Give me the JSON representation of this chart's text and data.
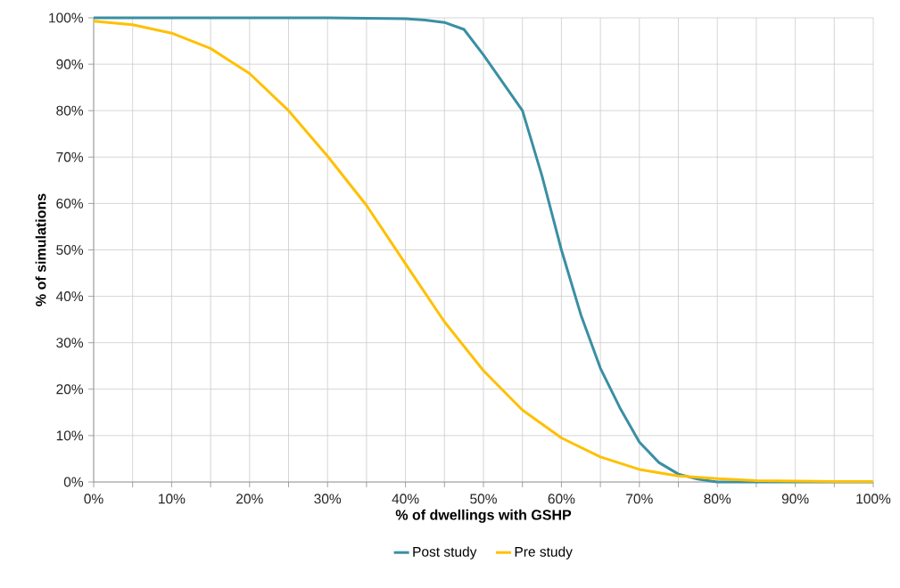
{
  "chart_data": {
    "type": "line",
    "xlabel": "% of dwellings with GSHP",
    "ylabel": "% of simulations",
    "xlim": [
      0,
      100
    ],
    "ylim": [
      0,
      100
    ],
    "xticks": [
      {
        "value": 0,
        "label": "0%"
      },
      {
        "value": 5,
        "label": null
      },
      {
        "value": 10,
        "label": "10%"
      },
      {
        "value": 15,
        "label": null
      },
      {
        "value": 20,
        "label": "20%"
      },
      {
        "value": 25,
        "label": null
      },
      {
        "value": 30,
        "label": "30%"
      },
      {
        "value": 35,
        "label": null
      },
      {
        "value": 40,
        "label": "40%"
      },
      {
        "value": 45,
        "label": null
      },
      {
        "value": 50,
        "label": "50%"
      },
      {
        "value": 55,
        "label": null
      },
      {
        "value": 60,
        "label": "60%"
      },
      {
        "value": 65,
        "label": null
      },
      {
        "value": 70,
        "label": "70%"
      },
      {
        "value": 75,
        "label": null
      },
      {
        "value": 80,
        "label": "80%"
      },
      {
        "value": 85,
        "label": null
      },
      {
        "value": 90,
        "label": "90%"
      },
      {
        "value": 95,
        "label": null
      },
      {
        "value": 100,
        "label": "100%"
      }
    ],
    "yticks": [
      {
        "value": 0,
        "label": "0%"
      },
      {
        "value": 10,
        "label": "10%"
      },
      {
        "value": 20,
        "label": "20%"
      },
      {
        "value": 30,
        "label": "30%"
      },
      {
        "value": 40,
        "label": "40%"
      },
      {
        "value": 50,
        "label": "50%"
      },
      {
        "value": 60,
        "label": "60%"
      },
      {
        "value": 70,
        "label": "70%"
      },
      {
        "value": 80,
        "label": "80%"
      },
      {
        "value": 90,
        "label": "90%"
      },
      {
        "value": 100,
        "label": "100%"
      }
    ],
    "grid": true,
    "legend": "bottom",
    "series": [
      {
        "name": "Post study",
        "color": "#3a8fa3",
        "x": [
          0,
          10,
          20,
          30,
          40,
          42.5,
          45,
          47.5,
          50,
          52.5,
          55,
          57.5,
          60,
          62.5,
          65,
          67.5,
          70,
          72.5,
          75,
          77.5,
          80,
          90,
          100
        ],
        "values": [
          100,
          100,
          100,
          100,
          99.8,
          99.5,
          99,
          97.5,
          92,
          86,
          80,
          66,
          50,
          36,
          24.5,
          16,
          8.6,
          4.2,
          1.7,
          0.6,
          0,
          0,
          0
        ]
      },
      {
        "name": "Pre study",
        "color": "#ffc000",
        "x": [
          0,
          5,
          10,
          15,
          20,
          25,
          30,
          35,
          40,
          45,
          50,
          55,
          60,
          65,
          70,
          75,
          80,
          85,
          90,
          95,
          100
        ],
        "values": [
          99.3,
          98.5,
          96.7,
          93.4,
          88,
          80,
          70.2,
          59.6,
          47,
          34.5,
          24,
          15.5,
          9.5,
          5.4,
          2.7,
          1.3,
          0.7,
          0.3,
          0.2,
          0.1,
          0.1
        ]
      }
    ]
  }
}
